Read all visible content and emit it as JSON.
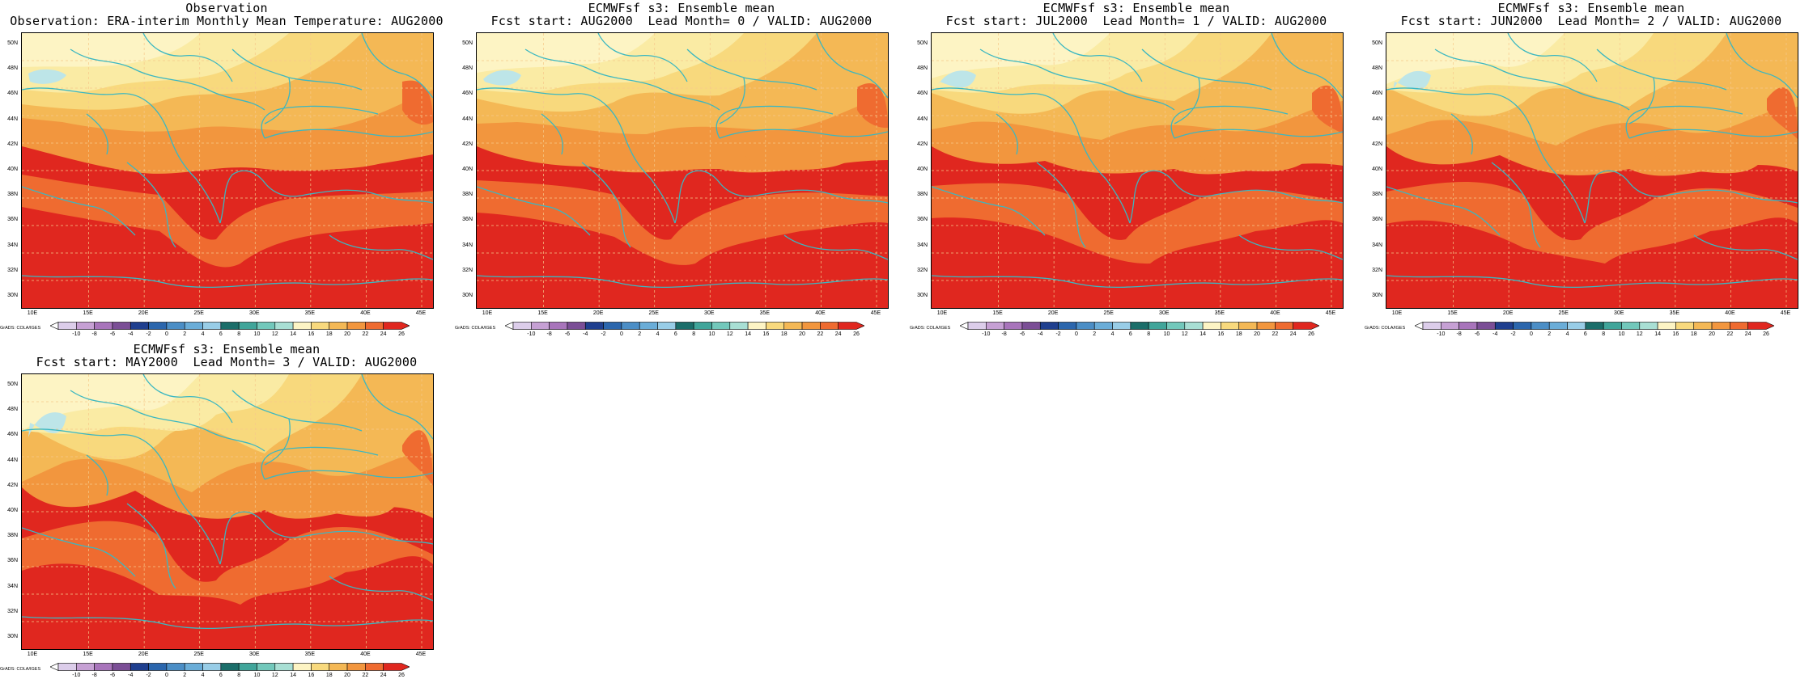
{
  "panels": [
    {
      "title1": "Observation",
      "title2": "Observation: ERA-interim Monthly Mean Temperature: AUG2000",
      "variant": 0
    },
    {
      "title1": "ECMWFsf s3: Ensemble mean",
      "title2": "Fcst start: AUG2000  Lead Month= 0 / VALID: AUG2000",
      "variant": 1
    },
    {
      "title1": "ECMWFsf s3: Ensemble mean",
      "title2": "Fcst start: JUL2000  Lead Month= 1 / VALID: AUG2000",
      "variant": 2
    },
    {
      "title1": "ECMWFsf s3: Ensemble mean",
      "title2": "Fcst start: JUN2000  Lead Month= 2 / VALID: AUG2000",
      "variant": 3
    },
    {
      "title1": "ECMWFsf s3: Ensemble mean",
      "title2": "Fcst start: MAY2000  Lead Month= 3 / VALID: AUG2000",
      "variant": 4
    }
  ],
  "lat_labels": [
    "50N",
    "48N",
    "46N",
    "44N",
    "42N",
    "40N",
    "38N",
    "36N",
    "34N",
    "32N",
    "30N"
  ],
  "lon_labels": [
    "10E",
    "15E",
    "20E",
    "25E",
    "30E",
    "35E",
    "40E",
    "45E"
  ],
  "colorbar_labels": [
    "-10",
    "-8",
    "-6",
    "-4",
    "-2",
    "0",
    "2",
    "4",
    "6",
    "8",
    "10",
    "12",
    "14",
    "16",
    "18",
    "20",
    "22",
    "24",
    "26"
  ],
  "colorbar_colors": [
    "#dccdea",
    "#c6a0d4",
    "#a874bb",
    "#7b4e96",
    "#1f3f8f",
    "#2b66ad",
    "#4b8ec6",
    "#6aadd8",
    "#98cde7",
    "#1b6e6a",
    "#40a59a",
    "#72c8bb",
    "#a8dfd4",
    "#fdf4c4",
    "#f8d97d",
    "#f4b855",
    "#f2963e",
    "#ef6b30",
    "#e0271f"
  ],
  "grads_label": "GrADS: COLA/IGES",
  "fill_colors": {
    "t16": "#fdf4c4",
    "t18": "#faeba4",
    "t20": "#f8d97d",
    "t22": "#f4b855",
    "t24": "#f2963e",
    "t26": "#ef6b30",
    "t28": "#e0271f",
    "cool1": "#bde5e8",
    "cool2": "#d9f0ee"
  },
  "coast_color": "#3bb7c1",
  "grid_color": "#f6c98a"
}
